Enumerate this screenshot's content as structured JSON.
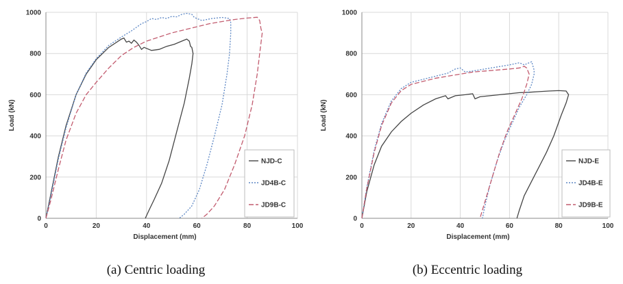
{
  "chart_data": [
    {
      "type": "line",
      "caption": "(a) Centric loading",
      "xlabel": "Displacement (mm)",
      "ylabel": "Load (kN)",
      "xlim": [
        0,
        100
      ],
      "ylim": [
        0,
        1000
      ],
      "xticks": [
        0,
        20,
        40,
        60,
        80,
        100
      ],
      "yticks": [
        0,
        200,
        400,
        600,
        800,
        1000
      ],
      "grid": true,
      "legend_position": "bottom-right",
      "series": [
        {
          "name": "NJD-C",
          "style": "solid",
          "color": "#444444",
          "points": [
            [
              0,
              0
            ],
            [
              2,
              120
            ],
            [
              5,
              300
            ],
            [
              8,
              450
            ],
            [
              12,
              600
            ],
            [
              16,
              700
            ],
            [
              20,
              770
            ],
            [
              25,
              830
            ],
            [
              30,
              870
            ],
            [
              31,
              875
            ],
            [
              32,
              855
            ],
            [
              33,
              860
            ],
            [
              34,
              850
            ],
            [
              35,
              865
            ],
            [
              36,
              855
            ],
            [
              37,
              840
            ],
            [
              38,
              820
            ],
            [
              39,
              830
            ],
            [
              42,
              815
            ],
            [
              45,
              820
            ],
            [
              48,
              835
            ],
            [
              51,
              845
            ],
            [
              54,
              860
            ],
            [
              56,
              870
            ],
            [
              57,
              860
            ],
            [
              57.5,
              835
            ],
            [
              58,
              830
            ],
            [
              58.5,
              800
            ],
            [
              58,
              750
            ],
            [
              57,
              680
            ],
            [
              55,
              560
            ],
            [
              52,
              420
            ],
            [
              49,
              280
            ],
            [
              46,
              170
            ],
            [
              43,
              90
            ],
            [
              41,
              40
            ],
            [
              39.5,
              0
            ]
          ]
        },
        {
          "name": "JD4B-C",
          "style": "dotted",
          "color": "#5b86c4",
          "points": [
            [
              0,
              0
            ],
            [
              2,
              110
            ],
            [
              5,
              290
            ],
            [
              8,
              440
            ],
            [
              12,
              600
            ],
            [
              16,
              705
            ],
            [
              20,
              775
            ],
            [
              25,
              840
            ],
            [
              30,
              880
            ],
            [
              34,
              910
            ],
            [
              38,
              945
            ],
            [
              40,
              955
            ],
            [
              42,
              970
            ],
            [
              44,
              965
            ],
            [
              46,
              975
            ],
            [
              48,
              970
            ],
            [
              50,
              980
            ],
            [
              52,
              978
            ],
            [
              54,
              990
            ],
            [
              56,
              995
            ],
            [
              58,
              990
            ],
            [
              59,
              975
            ],
            [
              60,
              970
            ],
            [
              62,
              960
            ],
            [
              64,
              965
            ],
            [
              66,
              970
            ],
            [
              70,
              975
            ],
            [
              73,
              970
            ],
            [
              73.5,
              950
            ],
            [
              73.5,
              900
            ],
            [
              73,
              800
            ],
            [
              72,
              700
            ],
            [
              70,
              550
            ],
            [
              67,
              400
            ],
            [
              64,
              260
            ],
            [
              61,
              140
            ],
            [
              58,
              60
            ],
            [
              55,
              20
            ],
            [
              53,
              0
            ]
          ]
        },
        {
          "name": "JD9B-C",
          "style": "dashed",
          "color": "#c25b6e",
          "points": [
            [
              0,
              0
            ],
            [
              2,
              90
            ],
            [
              5,
              240
            ],
            [
              8,
              380
            ],
            [
              12,
              510
            ],
            [
              16,
              600
            ],
            [
              20,
              660
            ],
            [
              25,
              730
            ],
            [
              30,
              790
            ],
            [
              35,
              830
            ],
            [
              40,
              860
            ],
            [
              45,
              880
            ],
            [
              50,
              900
            ],
            [
              55,
              915
            ],
            [
              60,
              930
            ],
            [
              65,
              945
            ],
            [
              70,
              955
            ],
            [
              75,
              965
            ],
            [
              80,
              972
            ],
            [
              84,
              976
            ],
            [
              85,
              960
            ],
            [
              85.5,
              920
            ],
            [
              86,
              900
            ],
            [
              85,
              800
            ],
            [
              84,
              700
            ],
            [
              82,
              550
            ],
            [
              79,
              400
            ],
            [
              75,
              260
            ],
            [
              71,
              140
            ],
            [
              67,
              60
            ],
            [
              64,
              20
            ],
            [
              62,
              0
            ]
          ]
        }
      ]
    },
    {
      "type": "line",
      "caption": "(b) Eccentric loading",
      "xlabel": "Displacement (mm)",
      "ylabel": "Load (kN)",
      "xlim": [
        0,
        100
      ],
      "ylim": [
        0,
        1000
      ],
      "xticks": [
        0,
        20,
        40,
        60,
        80,
        100
      ],
      "yticks": [
        0,
        200,
        400,
        600,
        800,
        1000
      ],
      "grid": true,
      "legend_position": "bottom-right",
      "series": [
        {
          "name": "NJD-E",
          "style": "solid",
          "color": "#444444",
          "points": [
            [
              0,
              0
            ],
            [
              2,
              130
            ],
            [
              5,
              260
            ],
            [
              8,
              350
            ],
            [
              12,
              420
            ],
            [
              16,
              470
            ],
            [
              20,
              510
            ],
            [
              25,
              550
            ],
            [
              30,
              580
            ],
            [
              34,
              595
            ],
            [
              35,
              580
            ],
            [
              38,
              595
            ],
            [
              42,
              600
            ],
            [
              45,
              605
            ],
            [
              46,
              580
            ],
            [
              48,
              590
            ],
            [
              52,
              595
            ],
            [
              56,
              600
            ],
            [
              60,
              605
            ],
            [
              64,
              610
            ],
            [
              68,
              612
            ],
            [
              72,
              615
            ],
            [
              76,
              618
            ],
            [
              80,
              620
            ],
            [
              83,
              618
            ],
            [
              84,
              600
            ],
            [
              83,
              560
            ],
            [
              81,
              500
            ],
            [
              78,
              400
            ],
            [
              75,
              320
            ],
            [
              72,
              250
            ],
            [
              69,
              180
            ],
            [
              66,
              110
            ],
            [
              64,
              40
            ],
            [
              63,
              0
            ]
          ]
        },
        {
          "name": "JD4B-E",
          "style": "dotted",
          "color": "#5b86c4",
          "points": [
            [
              0,
              0
            ],
            [
              2,
              150
            ],
            [
              5,
              330
            ],
            [
              8,
              460
            ],
            [
              12,
              570
            ],
            [
              16,
              630
            ],
            [
              20,
              660
            ],
            [
              25,
              675
            ],
            [
              30,
              690
            ],
            [
              35,
              705
            ],
            [
              38,
              725
            ],
            [
              40,
              730
            ],
            [
              42,
              710
            ],
            [
              45,
              715
            ],
            [
              50,
              725
            ],
            [
              55,
              735
            ],
            [
              60,
              745
            ],
            [
              64,
              755
            ],
            [
              66,
              745
            ],
            [
              68,
              755
            ],
            [
              69,
              760
            ],
            [
              70,
              720
            ],
            [
              70,
              700
            ],
            [
              69,
              650
            ],
            [
              67,
              600
            ],
            [
              64,
              540
            ],
            [
              61,
              460
            ],
            [
              58,
              380
            ],
            [
              55,
              280
            ],
            [
              52,
              160
            ],
            [
              50,
              60
            ],
            [
              49,
              0
            ]
          ]
        },
        {
          "name": "JD9B-E",
          "style": "dashed",
          "color": "#c25b6e",
          "points": [
            [
              0,
              0
            ],
            [
              2,
              145
            ],
            [
              5,
              320
            ],
            [
              8,
              450
            ],
            [
              12,
              560
            ],
            [
              16,
              620
            ],
            [
              20,
              650
            ],
            [
              25,
              665
            ],
            [
              30,
              680
            ],
            [
              35,
              690
            ],
            [
              40,
              700
            ],
            [
              45,
              710
            ],
            [
              50,
              715
            ],
            [
              55,
              720
            ],
            [
              60,
              725
            ],
            [
              64,
              730
            ],
            [
              66,
              738
            ],
            [
              67,
              730
            ],
            [
              68,
              700
            ],
            [
              67,
              650
            ],
            [
              65,
              580
            ],
            [
              62,
              500
            ],
            [
              59,
              420
            ],
            [
              56,
              320
            ],
            [
              53,
              200
            ],
            [
              50,
              80
            ],
            [
              48,
              0
            ]
          ]
        }
      ]
    }
  ]
}
